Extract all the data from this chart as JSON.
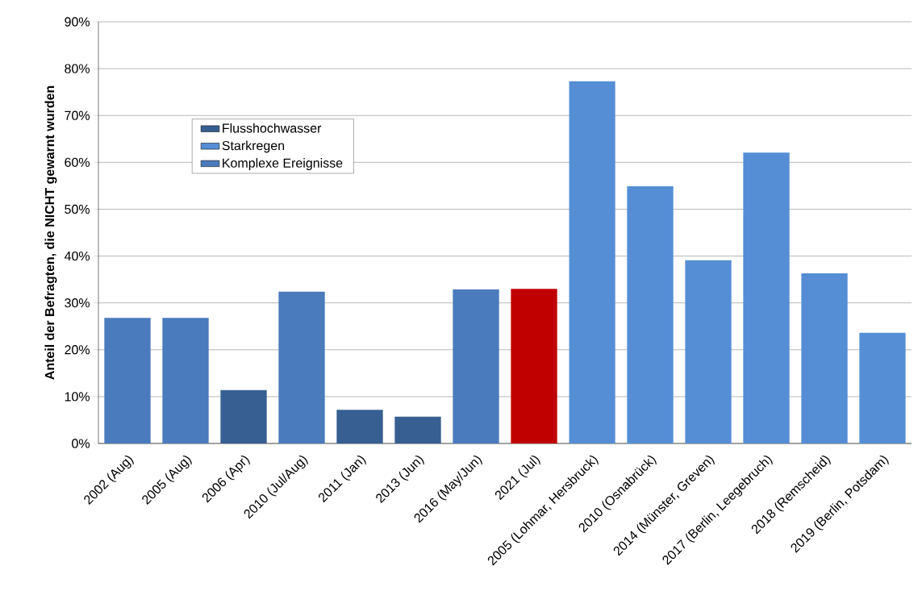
{
  "chart_data": {
    "type": "bar",
    "ylabel": "Anteil der Befragten, die NICHT gewarnt wurden",
    "categories": [
      "2002 (Aug)",
      "2005 (Aug)",
      "2006 (Apr)",
      "2010 (Jul/Aug)",
      "2011 (Jan)",
      "2013 (Jun)",
      "2016 (May/Jun)",
      "2021 (Jul)",
      "2005 (Lohmar, Hersbruck)",
      "2010 (Osnabrück)",
      "2014 (Münster, Greven)",
      "2017 (Berlin, Leegebruch)",
      "2018 (Remscheid)",
      "2019 (Berlin, Potsdam)"
    ],
    "series": [
      {
        "name": "Flusshochwasser",
        "color": "#375f91",
        "values": [
          null,
          null,
          11.4,
          null,
          7.2,
          5.7,
          null,
          null,
          null,
          null,
          null,
          null,
          null,
          null
        ]
      },
      {
        "name": "Starkregen",
        "color": "#558ed5",
        "values": [
          null,
          null,
          null,
          null,
          null,
          null,
          null,
          null,
          77.3,
          54.9,
          39.1,
          62.1,
          36.3,
          23.6
        ]
      },
      {
        "name": "Komplexe Ereignisse",
        "color": "#4a7bbd",
        "values": [
          26.8,
          26.8,
          null,
          32.4,
          null,
          null,
          32.9,
          null,
          null,
          null,
          null,
          null,
          null,
          null
        ]
      },
      {
        "color": "#c00000",
        "values": [
          null,
          null,
          null,
          null,
          null,
          null,
          null,
          33.0,
          null,
          null,
          null,
          null,
          null,
          null
        ]
      }
    ],
    "ylim": [
      0,
      90
    ],
    "yticks": [
      {
        "value": 0,
        "label": "0%"
      },
      {
        "value": 10,
        "label": "10%"
      },
      {
        "value": 20,
        "label": "20%"
      },
      {
        "value": 30,
        "label": "30%"
      },
      {
        "value": 40,
        "label": "40%"
      },
      {
        "value": 50,
        "label": "50%"
      },
      {
        "value": 60,
        "label": "60%"
      },
      {
        "value": 70,
        "label": "70%"
      },
      {
        "value": 80,
        "label": "80%"
      },
      {
        "value": 90,
        "label": "90%"
      }
    ],
    "grid": "y",
    "legend": "top left"
  }
}
